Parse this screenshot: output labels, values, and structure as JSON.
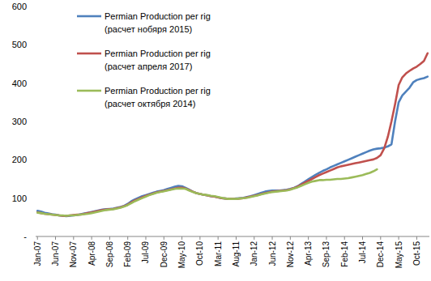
{
  "chart_data": {
    "type": "line",
    "categories": [
      "Jan-07",
      null,
      null,
      null,
      null,
      "Jun-07",
      null,
      null,
      null,
      null,
      "Nov-07",
      null,
      null,
      null,
      null,
      "Apr-08",
      null,
      null,
      null,
      null,
      "Sep-08",
      null,
      null,
      null,
      null,
      "Feb-09",
      null,
      null,
      null,
      null,
      "Jul-09",
      null,
      null,
      null,
      null,
      "Dec-09",
      null,
      null,
      null,
      null,
      "May-10",
      null,
      null,
      null,
      null,
      "Oct-10",
      null,
      null,
      null,
      null,
      "Mar-11",
      null,
      null,
      null,
      null,
      "Aug-11",
      null,
      null,
      null,
      null,
      "Jan-12",
      null,
      null,
      null,
      null,
      "Jun-12",
      null,
      null,
      null,
      null,
      "Nov-12",
      null,
      null,
      null,
      null,
      "Apr-13",
      null,
      null,
      null,
      null,
      "Sep-13",
      null,
      null,
      null,
      null,
      "Feb-14",
      null,
      null,
      null,
      null,
      "Jul-14",
      null,
      null,
      null,
      null,
      "Dec-14",
      null,
      null,
      null,
      null,
      "May-15",
      null,
      null,
      null,
      null,
      "Oct-15",
      null,
      null,
      null
    ],
    "series": [
      {
        "name": "Permian Production per rig (расчет нобяря 2015)",
        "color": "#4f81bd",
        "values": [
          67,
          65,
          62,
          60,
          58,
          57,
          55,
          54,
          53,
          54,
          55,
          56,
          58,
          60,
          62,
          64,
          66,
          68,
          70,
          71,
          72,
          73,
          75,
          77,
          80,
          85,
          92,
          97,
          101,
          105,
          108,
          111,
          114,
          117,
          119,
          121,
          124,
          127,
          130,
          132,
          131,
          127,
          122,
          117,
          113,
          111,
          109,
          107,
          105,
          104,
          102,
          100,
          99,
          98,
          98,
          99,
          100,
          101,
          103,
          105,
          108,
          111,
          114,
          117,
          119,
          120,
          120,
          120,
          121,
          122,
          124,
          127,
          131,
          137,
          143,
          149,
          155,
          161,
          166,
          171,
          175,
          180,
          184,
          188,
          192,
          196,
          200,
          204,
          208,
          212,
          216,
          220,
          224,
          227,
          229,
          230,
          232,
          235,
          240,
          300,
          350,
          368,
          378,
          388,
          402,
          408,
          411,
          413,
          417
        ]
      },
      {
        "name": "Permian Production per rig (расчет апреля 2017)",
        "color": "#c0504d",
        "values": [
          63,
          61,
          59,
          58,
          57,
          56,
          55,
          54,
          54,
          55,
          56,
          57,
          57,
          59,
          61,
          63,
          65,
          67,
          69,
          70,
          71,
          72,
          74,
          76,
          79,
          83,
          89,
          94,
          98,
          102,
          106,
          109,
          112,
          115,
          117,
          119,
          121,
          123,
          125,
          127,
          127,
          125,
          121,
          117,
          113,
          111,
          109,
          107,
          105,
          104,
          102,
          100,
          99,
          98,
          98,
          98,
          99,
          100,
          102,
          104,
          106,
          108,
          111,
          113,
          115,
          117,
          118,
          119,
          120,
          121,
          123,
          126,
          130,
          135,
          140,
          145,
          150,
          155,
          160,
          164,
          168,
          172,
          176,
          180,
          183,
          185,
          187,
          189,
          191,
          193,
          195,
          197,
          199,
          201,
          205,
          212,
          230,
          260,
          300,
          345,
          395,
          415,
          425,
          432,
          438,
          443,
          450,
          458,
          478
        ]
      },
      {
        "name": "Permian Production per rig (расчет октября 2014)",
        "color": "#9bbb59",
        "values": [
          62,
          61,
          59,
          58,
          57,
          56,
          55,
          55,
          54,
          55,
          55,
          56,
          57,
          58,
          59,
          61,
          63,
          65,
          67,
          69,
          70,
          71,
          73,
          75,
          78,
          82,
          87,
          92,
          96,
          100,
          104,
          108,
          111,
          114,
          116,
          118,
          120,
          122,
          124,
          125,
          125,
          124,
          120,
          116,
          113,
          111,
          109,
          108,
          106,
          105,
          103,
          101,
          99,
          98,
          98,
          98,
          99,
          100,
          101,
          103,
          105,
          107,
          110,
          112,
          114,
          116,
          117,
          118,
          119,
          120,
          122,
          125,
          128,
          132,
          136,
          140,
          143,
          145,
          147,
          147,
          148,
          148,
          149,
          150,
          150,
          151,
          152,
          154,
          156,
          158,
          160,
          163,
          166,
          170,
          175,
          null,
          null,
          null,
          null,
          null,
          null,
          null,
          null,
          null,
          null,
          null,
          null,
          null,
          null
        ]
      }
    ],
    "ylim": [
      0,
      600
    ],
    "yticks": [
      {
        "value": 0,
        "label": "-"
      },
      100,
      200,
      300,
      400,
      500,
      600
    ],
    "grid": false,
    "legend": "upper-left"
  }
}
